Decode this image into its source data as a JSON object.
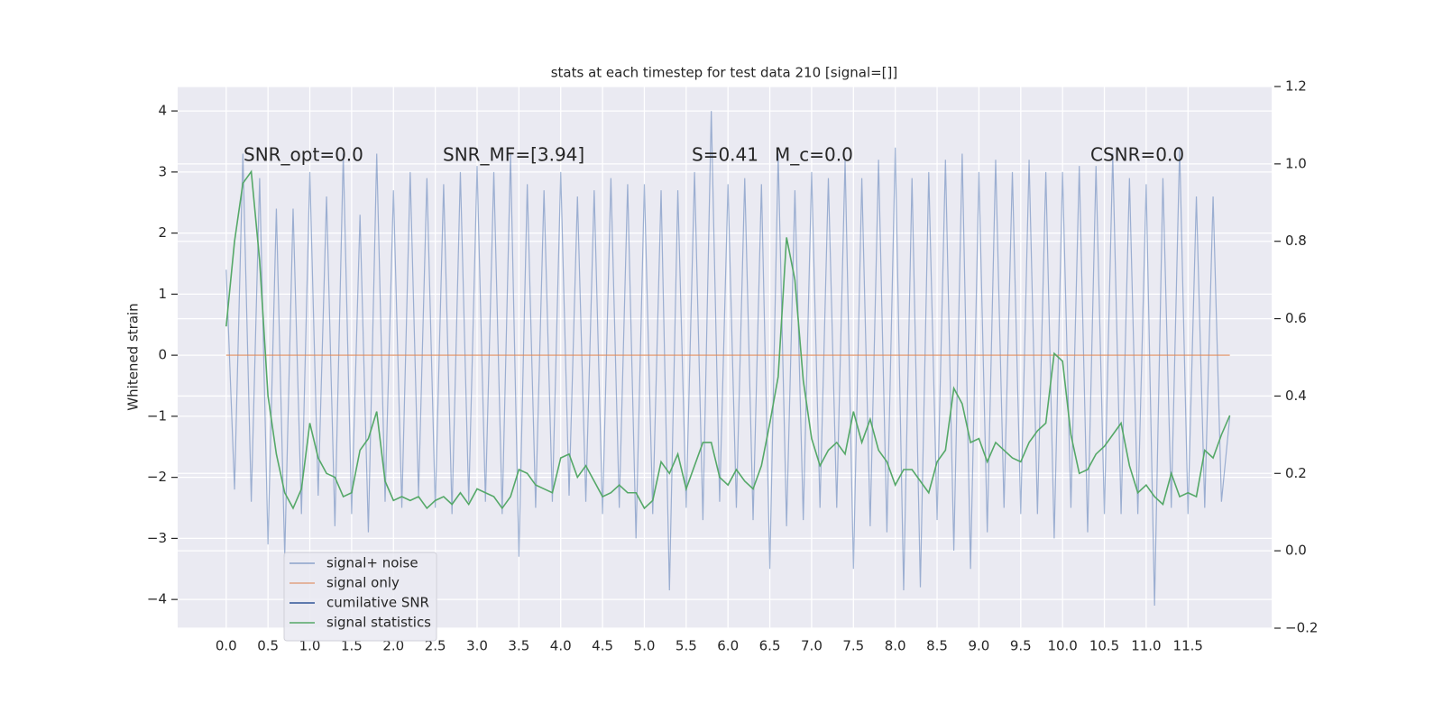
{
  "chart_data": {
    "type": "line",
    "title": "stats at each timestep for test data 210 [signal=[]]",
    "ylabel": "Whitened strain",
    "annotations": [
      "SNR_opt=0.0",
      "SNR_MF=[3.94]",
      "S=0.41",
      "M_c=0.0",
      "CSNR=0.0"
    ],
    "x": [
      0,
      0.1,
      0.2,
      0.3,
      0.4,
      0.5,
      0.6,
      0.7,
      0.8,
      0.9,
      1,
      1.1,
      1.2,
      1.3,
      1.4,
      1.5,
      1.6,
      1.7,
      1.8,
      1.9,
      2,
      2.1,
      2.2,
      2.3,
      2.4,
      2.5,
      2.6,
      2.7,
      2.8,
      2.9,
      3,
      3.1,
      3.2,
      3.3,
      3.4,
      3.5,
      3.6,
      3.7,
      3.8,
      3.9,
      4,
      4.1,
      4.2,
      4.3,
      4.4,
      4.5,
      4.6,
      4.7,
      4.8,
      4.9,
      5,
      5.1,
      5.2,
      5.3,
      5.4,
      5.5,
      5.6,
      5.7,
      5.8,
      5.9,
      6,
      6.1,
      6.2,
      6.3,
      6.4,
      6.5,
      6.6,
      6.7,
      6.8,
      6.9,
      7,
      7.1,
      7.2,
      7.3,
      7.4,
      7.5,
      7.6,
      7.7,
      7.8,
      7.9,
      8,
      8.1,
      8.2,
      8.3,
      8.4,
      8.5,
      8.6,
      8.7,
      8.8,
      8.9,
      9,
      9.1,
      9.2,
      9.3,
      9.4,
      9.5,
      9.6,
      9.7,
      9.8,
      9.9,
      10,
      10.1,
      10.2,
      10.3,
      10.4,
      10.5,
      10.6,
      10.7,
      10.8,
      10.9,
      11,
      11.1,
      11.2,
      11.3,
      11.4,
      11.5,
      11.6,
      11.7,
      11.8,
      11.9,
      12
    ],
    "series": [
      {
        "name": "signal+ noise",
        "color": "#4c72b0",
        "values": [
          1.4,
          -2.2,
          3.3,
          -2.4,
          2.9,
          -3.1,
          2.4,
          -3.3,
          2.4,
          -2.6,
          3.0,
          -2.3,
          2.6,
          -2.8,
          3.3,
          -2.6,
          2.3,
          -2.9,
          3.3,
          -2.4,
          2.7,
          -2.5,
          3.0,
          -2.3,
          2.9,
          -2.5,
          2.8,
          -2.6,
          3.0,
          -2.4,
          3.1,
          -2.4,
          3.0,
          -2.6,
          3.3,
          -3.3,
          2.8,
          -2.5,
          2.7,
          -2.4,
          3.0,
          -2.3,
          2.6,
          -2.4,
          2.7,
          -2.6,
          2.9,
          -2.5,
          2.8,
          -3.0,
          2.8,
          -2.6,
          2.7,
          -3.85,
          2.7,
          -2.5,
          3.0,
          -2.7,
          4.0,
          -2.4,
          2.8,
          -2.5,
          2.9,
          -2.7,
          2.8,
          -3.5,
          3.3,
          -2.8,
          2.7,
          -2.7,
          3.0,
          -2.5,
          2.9,
          -2.5,
          3.2,
          -3.5,
          2.9,
          -2.8,
          3.2,
          -2.9,
          3.4,
          -3.85,
          2.9,
          -3.8,
          3.0,
          -2.7,
          3.2,
          -3.2,
          3.3,
          -3.5,
          3.0,
          -2.9,
          3.2,
          -2.5,
          3.0,
          -2.6,
          3.2,
          -2.6,
          3.0,
          -3.0,
          3.0,
          -2.5,
          3.1,
          -2.9,
          3.1,
          -2.6,
          3.3,
          -2.6,
          2.9,
          -2.6,
          2.8,
          -4.1,
          2.9,
          -2.5,
          3.4,
          -2.6,
          2.6,
          -2.5,
          2.6,
          -2.4,
          -1.0
        ]
      },
      {
        "name": "signal only",
        "color": "#dd8452",
        "values": [
          0,
          0,
          0,
          0,
          0,
          0,
          0,
          0,
          0,
          0,
          0,
          0,
          0,
          0,
          0,
          0,
          0,
          0,
          0,
          0,
          0,
          0,
          0,
          0,
          0,
          0,
          0,
          0,
          0,
          0,
          0,
          0,
          0,
          0,
          0,
          0,
          0,
          0,
          0,
          0,
          0,
          0,
          0,
          0,
          0,
          0,
          0,
          0,
          0,
          0,
          0,
          0,
          0,
          0,
          0,
          0,
          0,
          0,
          0,
          0,
          0,
          0,
          0,
          0,
          0,
          0,
          0,
          0,
          0,
          0,
          0,
          0,
          0,
          0,
          0,
          0,
          0,
          0,
          0,
          0,
          0,
          0,
          0,
          0,
          0,
          0,
          0,
          0,
          0,
          0,
          0,
          0,
          0,
          0,
          0,
          0,
          0,
          0,
          0,
          0,
          0,
          0,
          0,
          0,
          0,
          0,
          0,
          0,
          0,
          0,
          0,
          0,
          0,
          0,
          0,
          0,
          0,
          0,
          0,
          0,
          0
        ]
      },
      {
        "name": "cumilative SNR",
        "color": "#2f5597"
      },
      {
        "name": "signal statistics",
        "color": "#55a868",
        "axis": "y2",
        "values": [
          0.58,
          0.8,
          0.95,
          0.98,
          0.75,
          0.4,
          0.25,
          0.15,
          0.11,
          0.16,
          0.33,
          0.24,
          0.2,
          0.19,
          0.14,
          0.15,
          0.26,
          0.29,
          0.36,
          0.18,
          0.13,
          0.14,
          0.13,
          0.14,
          0.11,
          0.13,
          0.14,
          0.12,
          0.15,
          0.12,
          0.16,
          0.15,
          0.14,
          0.11,
          0.14,
          0.21,
          0.2,
          0.17,
          0.16,
          0.15,
          0.24,
          0.25,
          0.19,
          0.22,
          0.18,
          0.14,
          0.15,
          0.17,
          0.15,
          0.15,
          0.11,
          0.13,
          0.23,
          0.2,
          0.25,
          0.16,
          0.22,
          0.28,
          0.28,
          0.19,
          0.17,
          0.21,
          0.18,
          0.16,
          0.22,
          0.33,
          0.45,
          0.81,
          0.7,
          0.44,
          0.29,
          0.22,
          0.26,
          0.28,
          0.25,
          0.36,
          0.28,
          0.34,
          0.26,
          0.23,
          0.17,
          0.21,
          0.21,
          0.18,
          0.15,
          0.23,
          0.26,
          0.42,
          0.38,
          0.28,
          0.29,
          0.23,
          0.28,
          0.26,
          0.24,
          0.23,
          0.28,
          0.31,
          0.33,
          0.51,
          0.49,
          0.3,
          0.2,
          0.21,
          0.25,
          0.27,
          0.3,
          0.33,
          0.22,
          0.15,
          0.17,
          0.14,
          0.12,
          0.2,
          0.14,
          0.15,
          0.14,
          0.26,
          0.24,
          0.3,
          0.35
        ]
      }
    ],
    "xlim": [
      -0.58,
      12.5
    ],
    "xticks": [
      {
        "value": 0,
        "label": "0.0"
      },
      0.5,
      {
        "value": 1,
        "label": "1.0"
      },
      1.5,
      {
        "value": 2,
        "label": "2.0"
      },
      2.5,
      {
        "value": 3,
        "label": "3.0"
      },
      3.5,
      {
        "value": 4,
        "label": "4.0"
      },
      4.5,
      {
        "value": 5,
        "label": "5.0"
      },
      5.5,
      {
        "value": 6,
        "label": "6.0"
      },
      6.5,
      {
        "value": 7,
        "label": "7.0"
      },
      7.5,
      {
        "value": 8,
        "label": "8.0"
      },
      8.5,
      {
        "value": 9,
        "label": "9.0"
      },
      9.5,
      {
        "value": 10,
        "label": "10.0"
      },
      10.5,
      {
        "value": 11,
        "label": "11.0"
      },
      11.5
    ],
    "ylim": [
      -4.47,
      4.4
    ],
    "yticks": [
      {
        "value": -4,
        "label": "−4"
      },
      {
        "value": -3,
        "label": "−3"
      },
      {
        "value": -2,
        "label": "−2"
      },
      {
        "value": -1,
        "label": "−1"
      },
      0,
      1,
      2,
      3,
      4
    ],
    "y2lim": [
      -0.2,
      1.2
    ],
    "y2ticks": [
      {
        "value": -0.2,
        "label": "−0.2"
      },
      {
        "value": 0,
        "label": "0.0"
      },
      0.2,
      0.4,
      0.6,
      0.8,
      {
        "value": 1,
        "label": "1.0"
      },
      1.2
    ],
    "grid": true,
    "legend": "lower left"
  }
}
